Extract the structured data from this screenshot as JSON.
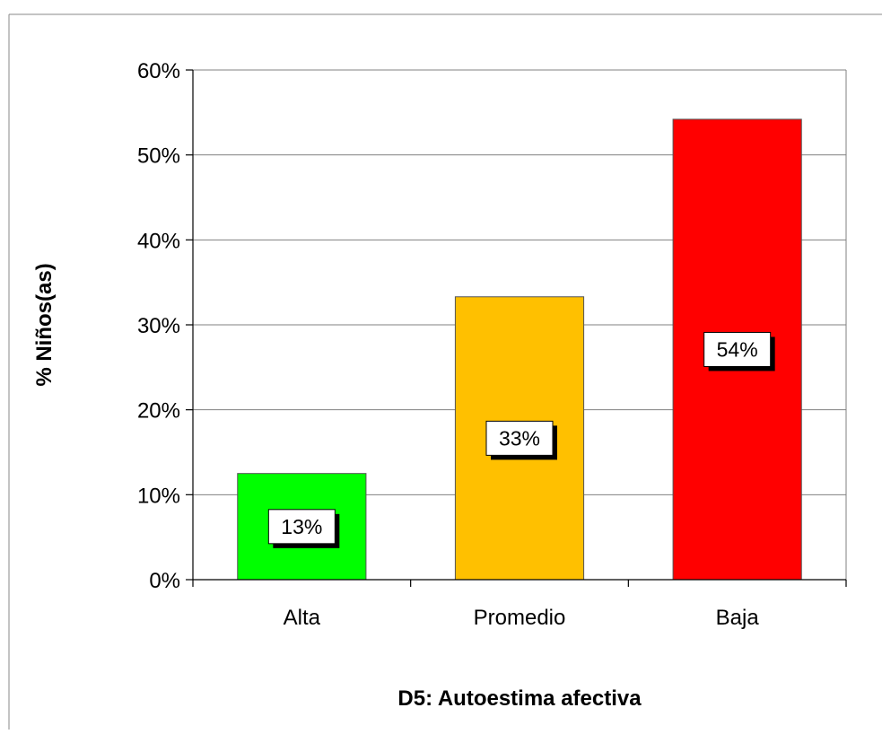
{
  "chart_data": {
    "type": "bar",
    "categories": [
      "Alta",
      "Promedio",
      "Baja"
    ],
    "values": [
      12.5,
      33.3,
      54.2
    ],
    "data_labels": [
      "13%",
      "33%",
      "54%"
    ],
    "colors": [
      "#00ff00",
      "#ffc000",
      "#ff0000"
    ],
    "xlabel": "D5: Autoestima afectiva",
    "ylabel": "% Niños(as)",
    "ylim": [
      0,
      60
    ],
    "yticks": [
      0,
      10,
      20,
      30,
      40,
      50,
      60
    ],
    "ytick_labels": [
      "0%",
      "10%",
      "20%",
      "30%",
      "40%",
      "50%",
      "60%"
    ],
    "grid": true,
    "legend": "none"
  }
}
